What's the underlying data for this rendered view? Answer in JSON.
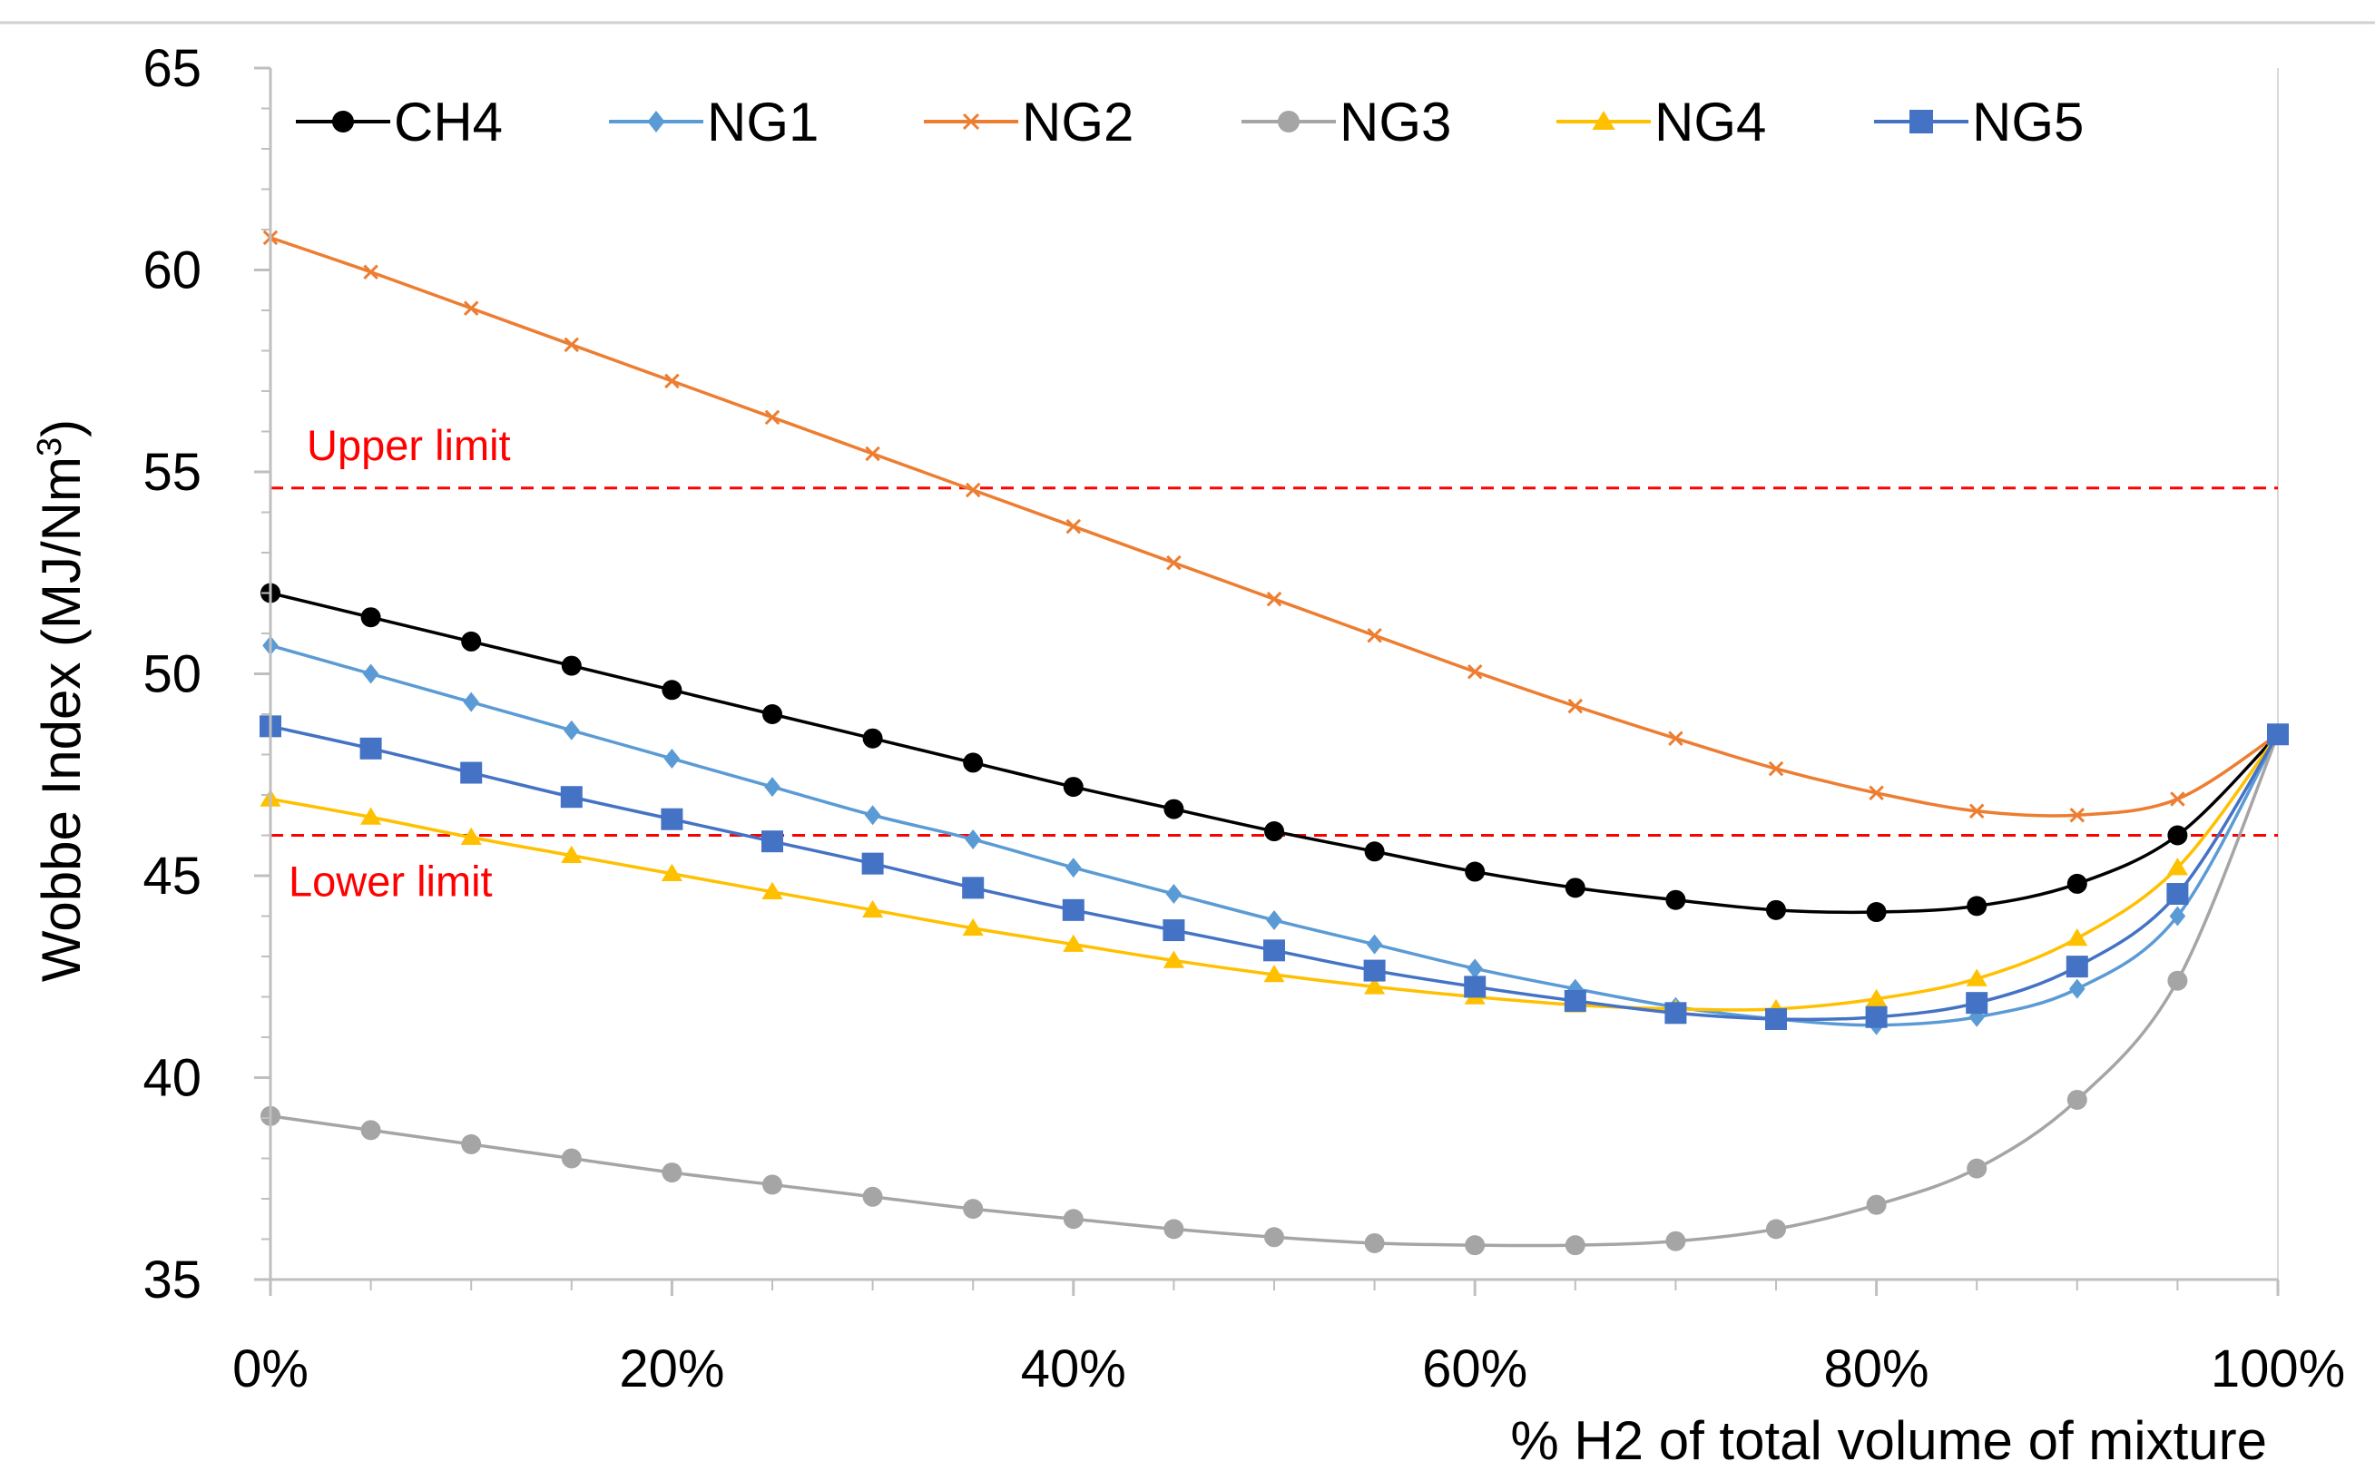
{
  "chart_data": {
    "type": "line",
    "title": "",
    "xlabel": "% H2 of total volume of mixture",
    "ylabel": "Wobbe Index (MJ/Nm",
    "ylabel_superscript": "3",
    "ylabel_close": ")",
    "xlim": [
      0,
      100
    ],
    "ylim": [
      35,
      65
    ],
    "x_ticks": [
      0,
      20,
      40,
      60,
      80,
      100
    ],
    "x_tick_labels": [
      "0%",
      "20%",
      "40%",
      "60%",
      "80%",
      "100%"
    ],
    "y_ticks": [
      35,
      40,
      45,
      50,
      55,
      60,
      65
    ],
    "y_tick_labels": [
      "35",
      "40",
      "45",
      "50",
      "55",
      "60",
      "65"
    ],
    "grid": false,
    "legend_position": "top",
    "x": [
      0,
      5,
      10,
      15,
      20,
      25,
      30,
      35,
      40,
      45,
      50,
      55,
      60,
      65,
      70,
      75,
      80,
      85,
      90,
      95,
      100
    ],
    "series": [
      {
        "name": "CH4",
        "color": "#000000",
        "marker": "circle",
        "values": [
          52.0,
          51.4,
          50.8,
          50.2,
          49.6,
          49.0,
          48.4,
          47.8,
          47.2,
          46.65,
          46.1,
          45.6,
          45.1,
          44.7,
          44.4,
          44.15,
          44.1,
          44.25,
          44.8,
          46.0,
          48.5
        ]
      },
      {
        "name": "NG1",
        "color": "#5b9bd5",
        "marker": "diamond",
        "values": [
          50.7,
          50.0,
          49.3,
          48.6,
          47.9,
          47.2,
          46.5,
          45.9,
          45.2,
          44.55,
          43.9,
          43.3,
          42.7,
          42.2,
          41.75,
          41.45,
          41.3,
          41.5,
          42.2,
          44.0,
          48.5
        ]
      },
      {
        "name": "NG2",
        "color": "#ed7d31",
        "marker": "x",
        "values": [
          60.8,
          59.95,
          59.05,
          58.15,
          57.25,
          56.35,
          55.45,
          54.55,
          53.65,
          52.75,
          51.85,
          50.95,
          50.05,
          49.2,
          48.4,
          47.65,
          47.05,
          46.6,
          46.5,
          46.9,
          48.5
        ]
      },
      {
        "name": "NG3",
        "color": "#a5a5a5",
        "marker": "circle",
        "values": [
          39.05,
          38.7,
          38.35,
          38.0,
          37.65,
          37.35,
          37.05,
          36.75,
          36.5,
          36.25,
          36.05,
          35.9,
          35.85,
          35.85,
          35.95,
          36.25,
          36.85,
          37.75,
          39.45,
          42.4,
          48.5
        ]
      },
      {
        "name": "NG4",
        "color": "#ffc000",
        "marker": "triangle",
        "values": [
          46.9,
          46.45,
          45.95,
          45.5,
          45.05,
          44.6,
          44.15,
          43.7,
          43.3,
          42.9,
          42.55,
          42.25,
          42.0,
          41.8,
          41.7,
          41.7,
          41.95,
          42.45,
          43.45,
          45.2,
          48.5
        ]
      },
      {
        "name": "NG5",
        "color": "#4472c4",
        "marker": "square",
        "values": [
          48.7,
          48.15,
          47.55,
          46.95,
          46.4,
          45.85,
          45.3,
          44.7,
          44.15,
          43.65,
          43.15,
          42.65,
          42.25,
          41.9,
          41.6,
          41.45,
          41.5,
          41.85,
          42.75,
          44.55,
          48.5
        ]
      }
    ],
    "reference_lines": [
      {
        "name": "upper-limit",
        "label": "Upper limit",
        "y": 54.6,
        "color": "#ff0000",
        "style": "dashed"
      },
      {
        "name": "lower-limit",
        "label": "Lower limit",
        "y": 46.0,
        "color": "#ff0000",
        "style": "dashed"
      }
    ]
  }
}
